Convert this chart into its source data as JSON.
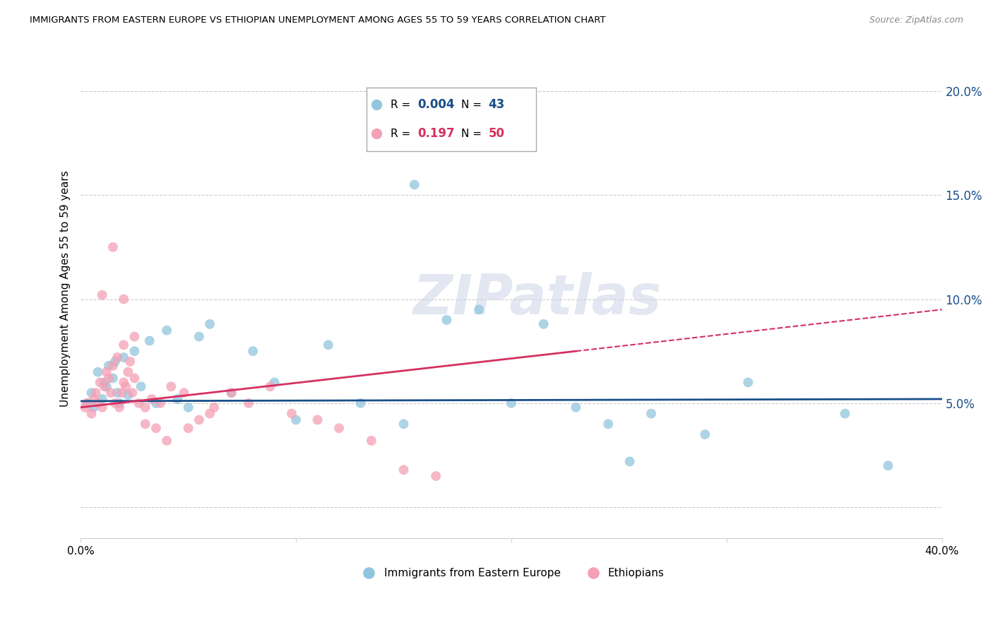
{
  "title": "IMMIGRANTS FROM EASTERN EUROPE VS ETHIOPIAN UNEMPLOYMENT AMONG AGES 55 TO 59 YEARS CORRELATION CHART",
  "source": "Source: ZipAtlas.com",
  "ylabel": "Unemployment Among Ages 55 to 59 years",
  "xlim": [
    0.0,
    0.4
  ],
  "ylim": [
    -0.015,
    0.225
  ],
  "blue_R": "0.004",
  "blue_N": "43",
  "pink_R": "0.197",
  "pink_N": "50",
  "blue_color": "#92c5de",
  "pink_color": "#f4a0b5",
  "blue_line_color": "#1a4f8a",
  "pink_line_color": "#d63060",
  "watermark": "ZIPatlas",
  "legend_label_blue": "Immigrants from Eastern Europe",
  "legend_label_pink": "Ethiopians",
  "blue_scatter_x": [
    0.003,
    0.005,
    0.006,
    0.008,
    0.01,
    0.011,
    0.012,
    0.013,
    0.015,
    0.016,
    0.017,
    0.018,
    0.02,
    0.022,
    0.025,
    0.028,
    0.032,
    0.035,
    0.04,
    0.045,
    0.05,
    0.055,
    0.06,
    0.07,
    0.08,
    0.09,
    0.1,
    0.115,
    0.13,
    0.15,
    0.155,
    0.17,
    0.185,
    0.2,
    0.215,
    0.23,
    0.245,
    0.255,
    0.265,
    0.29,
    0.31,
    0.355,
    0.375
  ],
  "blue_scatter_y": [
    0.05,
    0.055,
    0.048,
    0.065,
    0.052,
    0.06,
    0.058,
    0.068,
    0.062,
    0.07,
    0.055,
    0.05,
    0.072,
    0.054,
    0.075,
    0.058,
    0.08,
    0.05,
    0.085,
    0.052,
    0.048,
    0.082,
    0.088,
    0.055,
    0.075,
    0.06,
    0.042,
    0.078,
    0.05,
    0.04,
    0.155,
    0.09,
    0.095,
    0.05,
    0.088,
    0.048,
    0.04,
    0.022,
    0.045,
    0.035,
    0.06,
    0.045,
    0.02
  ],
  "pink_scatter_x": [
    0.002,
    0.003,
    0.005,
    0.006,
    0.007,
    0.008,
    0.009,
    0.01,
    0.011,
    0.012,
    0.013,
    0.014,
    0.015,
    0.016,
    0.017,
    0.018,
    0.019,
    0.02,
    0.021,
    0.022,
    0.023,
    0.024,
    0.025,
    0.027,
    0.03,
    0.033,
    0.037,
    0.042,
    0.048,
    0.055,
    0.062,
    0.07,
    0.078,
    0.088,
    0.098,
    0.11,
    0.12,
    0.135,
    0.15,
    0.165,
    0.01,
    0.015,
    0.02,
    0.025,
    0.03,
    0.035,
    0.04,
    0.05,
    0.06,
    0.02
  ],
  "pink_scatter_y": [
    0.048,
    0.05,
    0.045,
    0.052,
    0.055,
    0.05,
    0.06,
    0.048,
    0.058,
    0.065,
    0.062,
    0.055,
    0.068,
    0.05,
    0.072,
    0.048,
    0.055,
    0.06,
    0.058,
    0.065,
    0.07,
    0.055,
    0.062,
    0.05,
    0.048,
    0.052,
    0.05,
    0.058,
    0.055,
    0.042,
    0.048,
    0.055,
    0.05,
    0.058,
    0.045,
    0.042,
    0.038,
    0.032,
    0.018,
    0.015,
    0.102,
    0.125,
    0.078,
    0.082,
    0.04,
    0.038,
    0.032,
    0.038,
    0.045,
    0.1
  ],
  "blue_line_y_at_x0": 0.051,
  "blue_line_y_at_x40": 0.052,
  "pink_line_y_at_x0": 0.048,
  "pink_line_y_at_x23": 0.075,
  "pink_line_y_at_x40": 0.095
}
